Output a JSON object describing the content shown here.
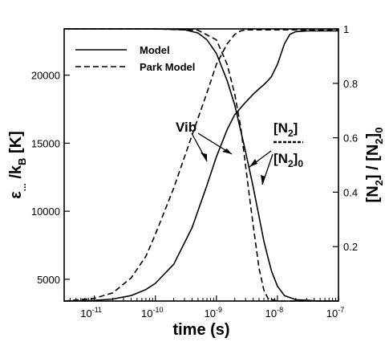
{
  "chart_data": {
    "type": "line",
    "xlabel": "time (s)",
    "x_scale": "log",
    "xlim": [
      3.2e-12,
      1e-07
    ],
    "x_ticks": [
      {
        "value": 1e-11,
        "base": "10",
        "exp": "-11"
      },
      {
        "value": 1e-10,
        "base": "10",
        "exp": "-10"
      },
      {
        "value": 1e-09,
        "base": "10",
        "exp": "-9"
      },
      {
        "value": 1e-08,
        "base": "10",
        "exp": "-8"
      },
      {
        "value": 1e-07,
        "base": "10",
        "exp": "-7"
      }
    ],
    "left_axis": {
      "label_main": "ε",
      "label_sub1": "...",
      "label_mid": " /k",
      "label_sub2": "B",
      "label_end": " [K]",
      "ylim": [
        3400,
        23400
      ],
      "ticks": [
        5000,
        10000,
        15000,
        20000
      ]
    },
    "right_axis": {
      "label_a": "[N",
      "label_a_sub": "2",
      "label_b": "] / [N",
      "label_b_sub": "2",
      "label_c": "]",
      "label_c_sub": "0",
      "ylim": [
        0,
        1
      ],
      "ticks": [
        {
          "value": 0.2,
          "label": "0.2"
        },
        {
          "value": 0.4,
          "label": "0.4"
        },
        {
          "value": 0.6,
          "label": "0.6"
        },
        {
          "value": 0.8,
          "label": "0.8"
        },
        {
          "value": 1.0,
          "label": "1"
        }
      ]
    },
    "legend": {
      "placement": "top-left",
      "entries": [
        {
          "name": "Model",
          "style": "solid"
        },
        {
          "name": "Park Model",
          "style": "dashed"
        }
      ]
    },
    "annotations": {
      "vib": "Vib",
      "n2_top_a": "[N",
      "n2_top_sub": "2",
      "n2_top_b": "]",
      "n2_bottom_a": "[N",
      "n2_bottom_sub": "2",
      "n2_bottom_b": "]",
      "n2_bottom_sub2": "0"
    },
    "series": [
      {
        "name": "Model",
        "quantity": "vibrational energy",
        "axis": "left",
        "style": "solid",
        "x": [
          3.2e-12,
          1e-11,
          2e-11,
          4e-11,
          7e-11,
          1e-10,
          2e-10,
          4e-10,
          7e-10,
          1e-09,
          1.5e-09,
          2e-09,
          3e-09,
          4e-09,
          5e-09,
          6e-09,
          7e-09,
          8e-09,
          1e-08,
          1.3e-08,
          1.6e-08,
          2e-08,
          3e-08,
          5e-08,
          1e-07
        ],
        "y": [
          3400,
          3450,
          3550,
          3800,
          4250,
          4700,
          6100,
          8800,
          11900,
          14000,
          16000,
          17100,
          18000,
          18600,
          19000,
          19300,
          19600,
          19900,
          20800,
          22300,
          23000,
          23200,
          23250,
          23250,
          23250
        ]
      },
      {
        "name": "Park Model",
        "quantity": "vibrational energy",
        "axis": "left",
        "style": "dashed",
        "x": [
          3.2e-12,
          1e-11,
          2e-11,
          4e-11,
          7e-11,
          1e-10,
          2e-10,
          4e-10,
          7e-10,
          1e-09,
          1.5e-09,
          2e-09,
          2.5e-09,
          3e-09,
          4e-09,
          5e-09,
          1e-08,
          1e-07
        ],
        "y": [
          3400,
          3600,
          4000,
          5100,
          6700,
          8300,
          11700,
          15600,
          18700,
          20800,
          22300,
          23000,
          23250,
          23330,
          23330,
          23330,
          23330,
          23330
        ]
      },
      {
        "name": "Model",
        "quantity": "[N2]/[N2]0",
        "axis": "right",
        "style": "solid",
        "x": [
          3.2e-12,
          1e-11,
          1e-10,
          3e-10,
          5e-10,
          7e-10,
          1e-09,
          1.5e-09,
          2e-09,
          3e-09,
          4e-09,
          5e-09,
          6e-09,
          7e-09,
          8e-09,
          1e-08,
          1.3e-08,
          2e-08,
          5e-08,
          1e-07
        ],
        "y": [
          1.0,
          1.0,
          1.0,
          0.997,
          0.985,
          0.96,
          0.91,
          0.81,
          0.72,
          0.55,
          0.42,
          0.31,
          0.22,
          0.16,
          0.11,
          0.055,
          0.02,
          0.005,
          0.0,
          0.0
        ]
      },
      {
        "name": "Park Model",
        "quantity": "[N2]/[N2]0",
        "axis": "right",
        "style": "dashed",
        "x": [
          3.2e-12,
          1e-11,
          1e-10,
          5e-10,
          1e-09,
          1.5e-09,
          2e-09,
          2.5e-09,
          3e-09,
          3.5e-09,
          4e-09,
          5e-09,
          6e-09,
          7e-09,
          1e-08,
          1e-07
        ],
        "y": [
          1.0,
          1.0,
          1.0,
          0.995,
          0.96,
          0.87,
          0.76,
          0.64,
          0.5,
          0.38,
          0.28,
          0.12,
          0.04,
          0.01,
          0.0,
          0.0
        ]
      }
    ]
  }
}
